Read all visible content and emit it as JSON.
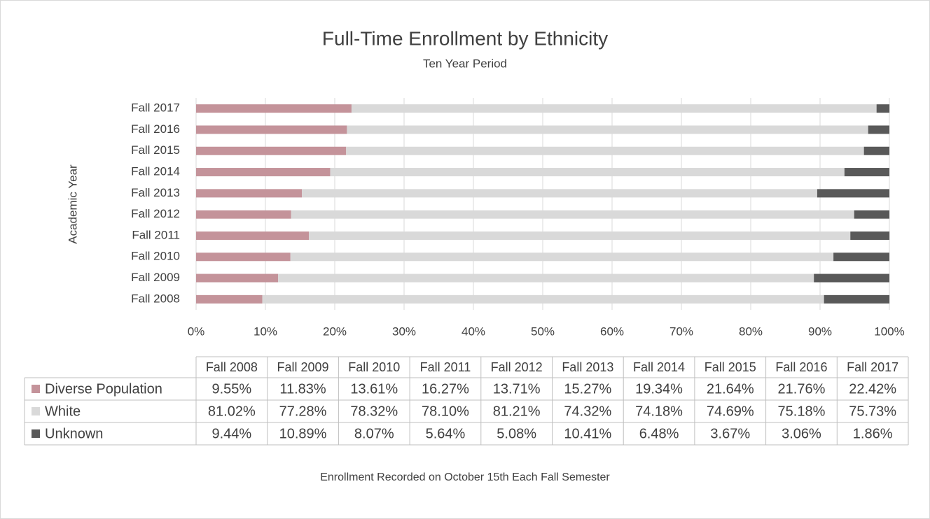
{
  "chart_data": {
    "type": "bar",
    "orientation": "horizontal",
    "stacked": true,
    "title": "Full-Time Enrollment by Ethnicity",
    "subtitle": "Ten Year Period",
    "ylabel": "Academic Year",
    "note": "Enrollment Recorded on October 15th Each Fall Semester",
    "categories": [
      "Fall 2008",
      "Fall 2009",
      "Fall 2010",
      "Fall 2011",
      "Fall 2012",
      "Fall 2013",
      "Fall 2014",
      "Fall 2015",
      "Fall 2016",
      "Fall 2017"
    ],
    "series": [
      {
        "name": "Diverse Population",
        "color": "#c4939a",
        "values": [
          9.55,
          11.83,
          13.61,
          16.27,
          13.71,
          15.27,
          19.34,
          21.64,
          21.76,
          22.42
        ],
        "value_labels": [
          "9.55%",
          "11.83%",
          "13.61%",
          "16.27%",
          "13.71%",
          "15.27%",
          "19.34%",
          "21.64%",
          "21.76%",
          "22.42%"
        ]
      },
      {
        "name": "White",
        "color": "#d9d9d9",
        "values": [
          81.02,
          77.28,
          78.32,
          78.1,
          81.21,
          74.32,
          74.18,
          74.69,
          75.18,
          75.73
        ],
        "value_labels": [
          "81.02%",
          "77.28%",
          "78.32%",
          "78.10%",
          "81.21%",
          "74.32%",
          "74.18%",
          "74.69%",
          "75.18%",
          "75.73%"
        ]
      },
      {
        "name": "Unknown",
        "color": "#595959",
        "values": [
          9.44,
          10.89,
          8.07,
          5.64,
          5.08,
          10.41,
          6.48,
          3.67,
          3.06,
          1.86
        ],
        "value_labels": [
          "9.44%",
          "10.89%",
          "8.07%",
          "5.64%",
          "5.08%",
          "10.41%",
          "6.48%",
          "3.67%",
          "3.06%",
          "1.86%"
        ]
      }
    ],
    "xlim": [
      0,
      100
    ],
    "xticks": [
      {
        "value": 0,
        "label": "0%"
      },
      {
        "value": 10,
        "label": "10%"
      },
      {
        "value": 20,
        "label": "20%"
      },
      {
        "value": 30,
        "label": "30%"
      },
      {
        "value": 40,
        "label": "40%"
      },
      {
        "value": 50,
        "label": "50%"
      },
      {
        "value": 60,
        "label": "60%"
      },
      {
        "value": 70,
        "label": "70%"
      },
      {
        "value": 80,
        "label": "80%"
      },
      {
        "value": 90,
        "label": "90%"
      },
      {
        "value": 100,
        "label": "100%"
      }
    ],
    "grid": true,
    "data_table": true
  }
}
